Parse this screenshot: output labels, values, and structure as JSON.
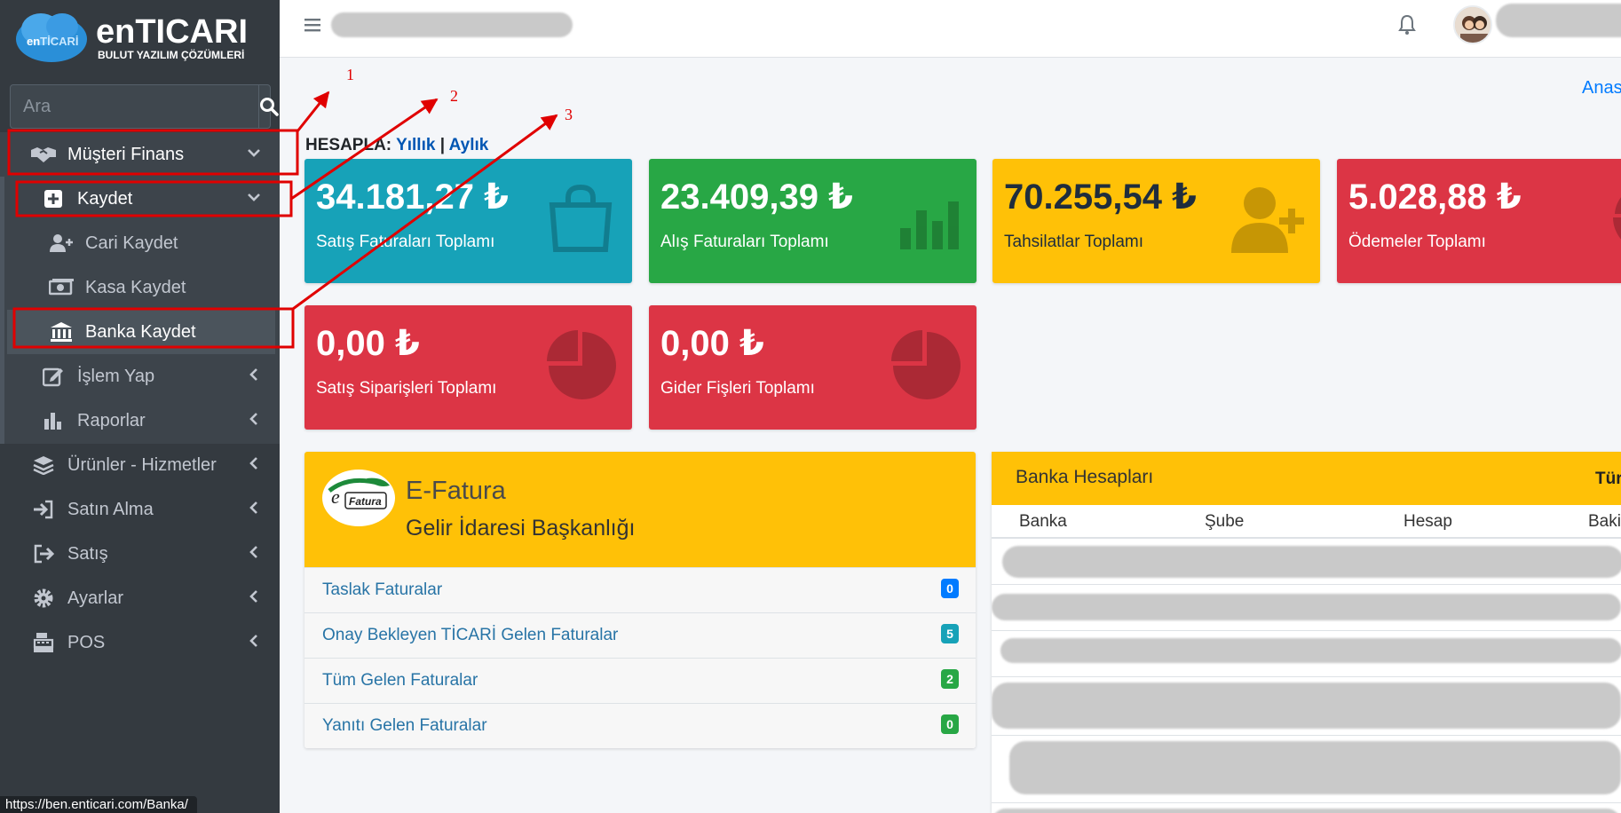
{
  "brand": {
    "logo_text": "enTICARI",
    "tagline": "BULUT YAZILIM ÇÖZÜMLERİ"
  },
  "search": {
    "placeholder": "Ara"
  },
  "sidebar": {
    "items": [
      {
        "label": "Müşteri Finans",
        "icon": "handshake-icon"
      },
      {
        "label": "Kaydet",
        "icon": "plus-square-icon"
      },
      {
        "label": "Cari Kaydet",
        "icon": "user-plus-icon"
      },
      {
        "label": "Kasa Kaydet",
        "icon": "money-icon"
      },
      {
        "label": "Banka Kaydet",
        "icon": "bank-icon"
      },
      {
        "label": "İşlem Yap",
        "icon": "edit-icon"
      },
      {
        "label": "Raporlar",
        "icon": "bar-chart-icon"
      },
      {
        "label": "Ürünler - Hizmetler",
        "icon": "layers-icon"
      },
      {
        "label": "Satın Alma",
        "icon": "sign-in-icon"
      },
      {
        "label": "Satış",
        "icon": "sign-out-icon"
      },
      {
        "label": "Ayarlar",
        "icon": "gear-icon"
      },
      {
        "label": "POS",
        "icon": "cash-register-icon"
      }
    ]
  },
  "status_url": "https://ben.enticari.com/Banka/",
  "breadcrumb": "Anasa",
  "hesapla": {
    "label": "HESAPLA:",
    "yearly": "Yıllık",
    "separator": "|",
    "monthly": "Aylık"
  },
  "stats": [
    {
      "value": "34.181,27 ₺",
      "label": "Satış Faturaları Toplamı",
      "color": "#17a2b8"
    },
    {
      "value": "23.409,39 ₺",
      "label": "Alış Faturaları Toplamı",
      "color": "#28a745"
    },
    {
      "value": "70.255,54 ₺",
      "label": "Tahsilatlar Toplamı",
      "color": "#ffc107"
    },
    {
      "value": "5.028,88 ₺",
      "label": "Ödemeler Toplamı",
      "color": "#dc3545"
    },
    {
      "value": "0,00 ₺",
      "label": "Satış Siparişleri Toplamı",
      "color": "#dc3545"
    },
    {
      "value": "0,00 ₺",
      "label": "Gider Fişleri Toplamı",
      "color": "#dc3545"
    }
  ],
  "efatura": {
    "logo_text": "Fatura",
    "title": "E-Fatura",
    "subtitle": "Gelir İdaresi Başkanlığı",
    "rows": [
      {
        "label": "Taslak Faturalar",
        "count": "0"
      },
      {
        "label": "Onay Bekleyen TİCARİ Gelen Faturalar",
        "count": "5"
      },
      {
        "label": "Tüm Gelen Faturalar",
        "count": "2"
      },
      {
        "label": "Yanıtı Gelen Faturalar",
        "count": "0"
      }
    ]
  },
  "bank": {
    "title": "Banka Hesapları",
    "header_right": "Tür",
    "columns": [
      "Banka",
      "Şube",
      "Hesap",
      "Baki"
    ]
  },
  "annotations": [
    "1",
    "2",
    "3"
  ]
}
